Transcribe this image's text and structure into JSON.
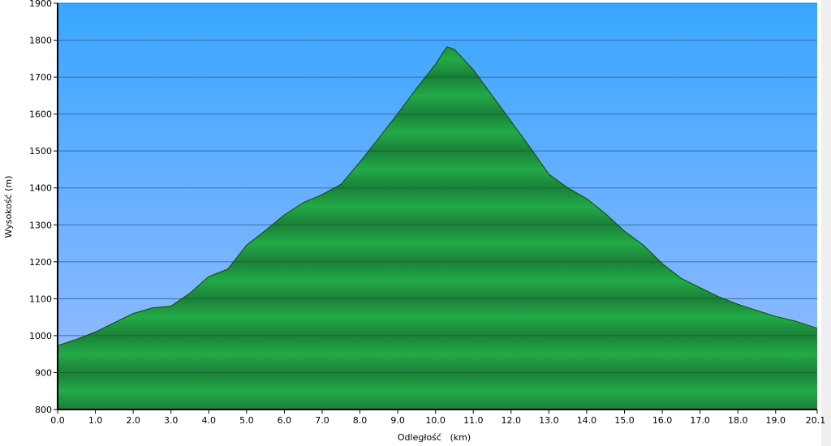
{
  "chart_data": {
    "type": "area",
    "xlabel": "Odległość   (km)",
    "ylabel": "Wysokość (m)",
    "xlim": [
      0,
      20.1
    ],
    "ylim": [
      800,
      1900
    ],
    "grid": true,
    "x_ticks": [
      "0.0",
      "1.0",
      "2.0",
      "3.0",
      "4.0",
      "5.0",
      "6.0",
      "7.0",
      "8.0",
      "9.0",
      "10.0",
      "11.0",
      "12.0",
      "13.0",
      "14.0",
      "15.0",
      "16.0",
      "17.0",
      "18.0",
      "19.0",
      "20.1"
    ],
    "y_ticks": [
      "800",
      "900",
      "1000",
      "1100",
      "1200",
      "1300",
      "1400",
      "1500",
      "1600",
      "1700",
      "1800",
      "1900"
    ],
    "x": [
      0,
      0.5,
      1.0,
      1.5,
      2.0,
      2.5,
      3.0,
      3.5,
      4.0,
      4.5,
      5.0,
      5.5,
      6.0,
      6.5,
      7.0,
      7.5,
      8.0,
      8.5,
      9.0,
      9.5,
      10.0,
      10.3,
      10.5,
      11.0,
      11.5,
      12.0,
      12.5,
      13.0,
      13.5,
      14.0,
      14.5,
      15.0,
      15.5,
      16.0,
      16.5,
      17.0,
      17.5,
      18.0,
      18.5,
      19.0,
      19.5,
      20.1
    ],
    "y": [
      973,
      990,
      1010,
      1035,
      1060,
      1075,
      1080,
      1115,
      1160,
      1180,
      1245,
      1285,
      1327,
      1360,
      1382,
      1410,
      1470,
      1535,
      1601,
      1670,
      1735,
      1782,
      1775,
      1720,
      1650,
      1580,
      1510,
      1437,
      1400,
      1371,
      1330,
      1283,
      1245,
      1195,
      1155,
      1130,
      1105,
      1085,
      1068,
      1052,
      1040,
      1020
    ],
    "colors": {
      "sky_top": "#38a6ff",
      "sky_bottom": "#9cbcff",
      "fill": "#22aa48",
      "fill_dark": "#1a8038",
      "outline": "#1d3a2a"
    }
  }
}
